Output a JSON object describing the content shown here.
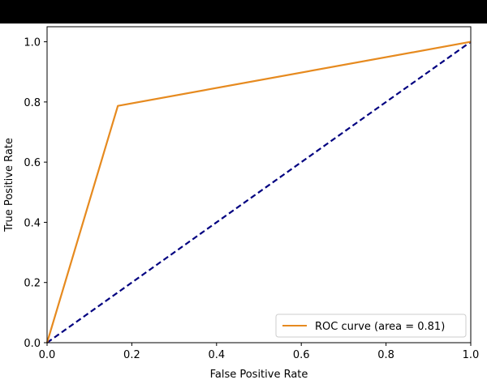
{
  "chart_data": {
    "type": "line",
    "title": "",
    "xlabel": "False Positive Rate",
    "ylabel": "True Positive Rate",
    "xlim": [
      0,
      1
    ],
    "ylim": [
      0,
      1.05
    ],
    "xticks": [
      "0.0",
      "0.2",
      "0.4",
      "0.6",
      "0.8",
      "1.0"
    ],
    "yticks": [
      "0.0",
      "0.2",
      "0.4",
      "0.6",
      "0.8",
      "1.0"
    ],
    "grid": false,
    "legend_position": "lower-right",
    "series": [
      {
        "name": "ROC curve (area = 0.81)",
        "color": "#e68a1f",
        "style": "solid",
        "x": [
          0.0,
          0.167,
          1.0
        ],
        "y": [
          0.0,
          0.787,
          1.0
        ]
      },
      {
        "color": "#000080",
        "style": "dashed",
        "x": [
          0.0,
          1.0
        ],
        "y": [
          0.0,
          1.0
        ]
      }
    ]
  }
}
